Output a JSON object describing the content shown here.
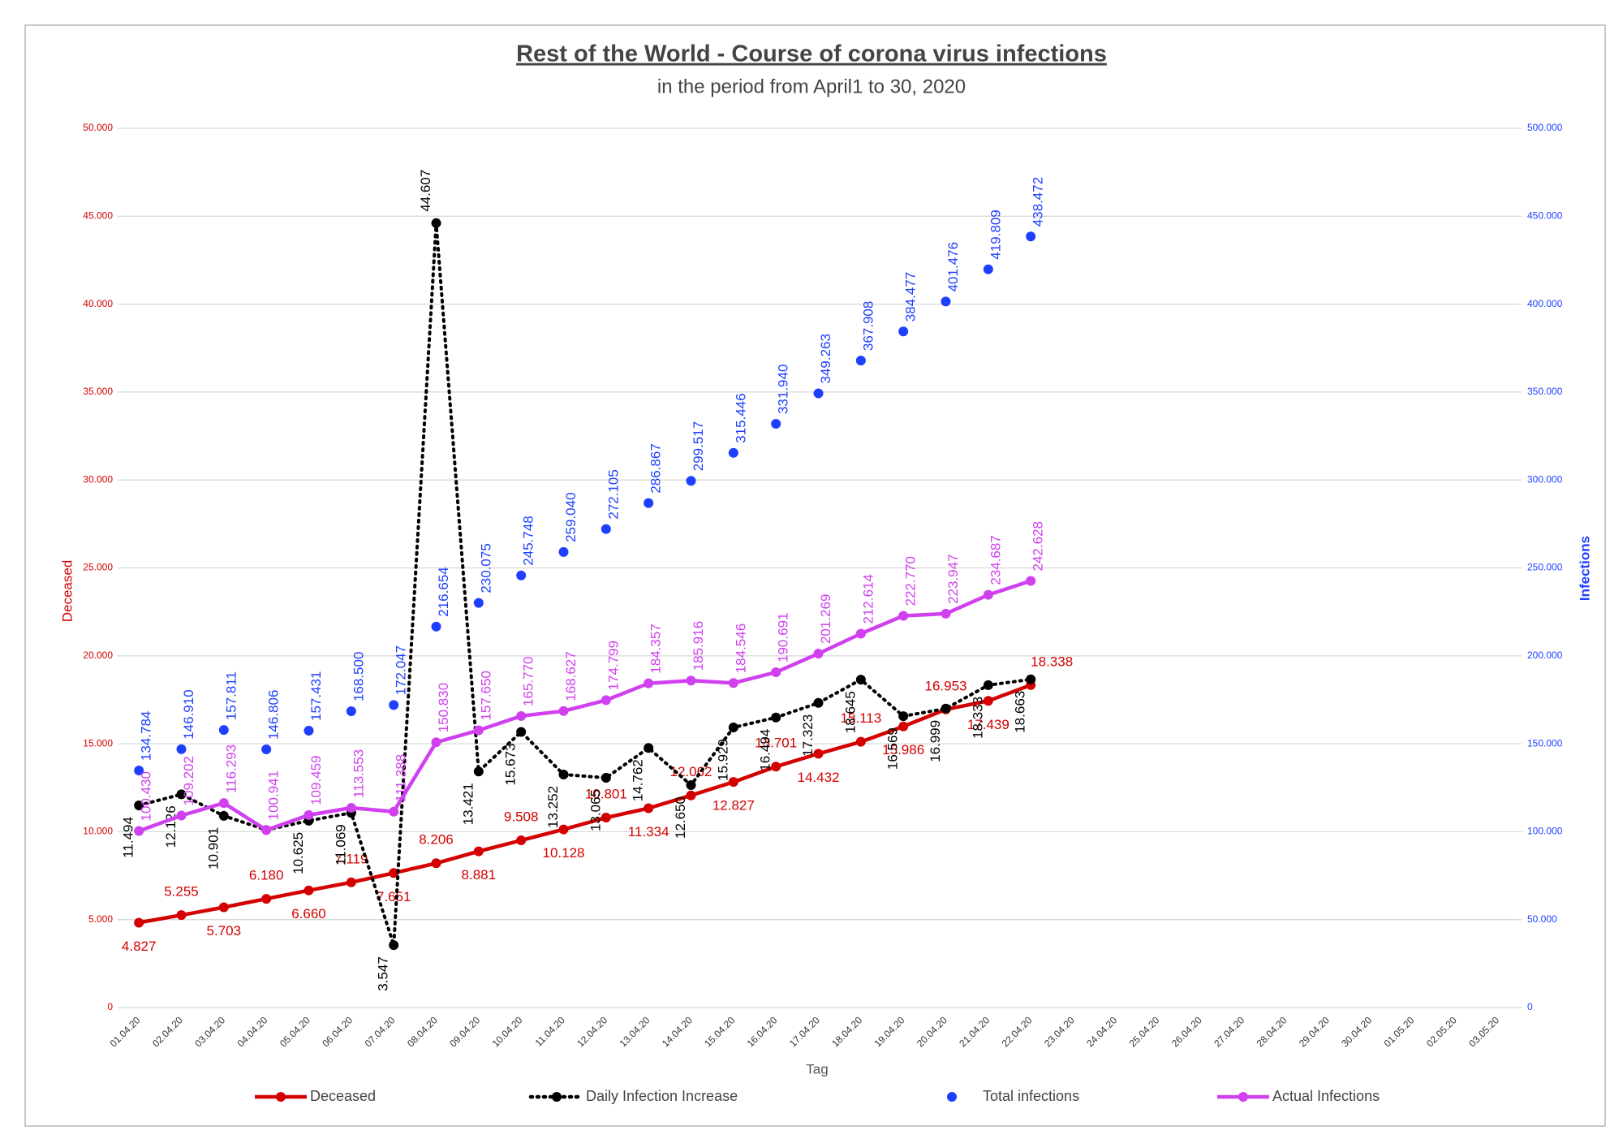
{
  "chart_data": {
    "type": "line",
    "title": "Rest of the World - Course of corona virus infections",
    "subtitle": "in the period from April1 to 30, 2020",
    "x_label": "Tag",
    "y_label": "Deceased",
    "y2_label": "Infections",
    "grid": true,
    "legend": "bottom",
    "categories": [
      "01.04.20",
      "02.04.20",
      "03.04.20",
      "04.04.20",
      "05.04.20",
      "06.04.20",
      "07.04.20",
      "08.04.20",
      "09.04.20",
      "10.04.20",
      "11.04.20",
      "12.04.20",
      "13.04.20",
      "14.04.20",
      "15.04.20",
      "16.04.20",
      "17.04.20",
      "18.04.20",
      "19.04.20",
      "20.04.20",
      "21.04.20",
      "22.04.20",
      "23.04.20",
      "24.04.20",
      "25.04.20",
      "26.04.20",
      "27.04.20",
      "28.04.20",
      "29.04.20",
      "30.04.20",
      "01.05.20",
      "02.05.20",
      "03.05.20"
    ],
    "ylim": [
      0,
      50000
    ],
    "yticks": [
      0,
      {
        "value": 5000,
        "label": "5.000"
      },
      {
        "value": 10000,
        "label": "10.000"
      },
      {
        "value": 15000,
        "label": "15.000"
      },
      {
        "value": 20000,
        "label": "20.000"
      },
      {
        "value": 25000,
        "label": "25.000"
      },
      {
        "value": 30000,
        "label": "30.000"
      },
      {
        "value": 35000,
        "label": "35.000"
      },
      {
        "value": 40000,
        "label": "40.000"
      },
      {
        "value": 45000,
        "label": "45.000"
      },
      {
        "value": 50000,
        "label": "50.000"
      }
    ],
    "y2lim": [
      0,
      500000
    ],
    "y2ticks": [
      0,
      {
        "value": 50000,
        "label": "50.000"
      },
      {
        "value": 100000,
        "label": "100.000"
      },
      {
        "value": 150000,
        "label": "150.000"
      },
      {
        "value": 200000,
        "label": "200.000"
      },
      {
        "value": 250000,
        "label": "250.000"
      },
      {
        "value": 300000,
        "label": "300.000"
      },
      {
        "value": 350000,
        "label": "350.000"
      },
      {
        "value": 400000,
        "label": "400.000"
      },
      {
        "value": 450000,
        "label": "450.000"
      },
      {
        "value": 500000,
        "label": "500.000"
      }
    ],
    "series": [
      {
        "name": "Deceased",
        "color": "#d40000",
        "line_style": "solid",
        "axis": "y",
        "values": [
          4827,
          5255,
          5703,
          6180,
          6660,
          7119,
          7651,
          8206,
          8881,
          9508,
          10128,
          10801,
          11334,
          12062,
          12827,
          13701,
          14432,
          15113,
          15986,
          16953,
          17439,
          18338,
          null,
          null,
          null,
          null,
          null,
          null,
          null,
          null,
          null,
          null,
          null
        ],
        "value_labels": [
          "4.827",
          "5.255",
          "5.703",
          "6.180",
          "6.660",
          "7.119",
          "7.651",
          "8.206",
          "8.881",
          "9.508",
          "10.128",
          "10.801",
          "11.334",
          "12.062",
          "12.827",
          "13.701",
          "14.432",
          "15.113",
          "15.986",
          "16.953",
          "17.439",
          "18.338",
          null,
          null,
          null,
          null,
          null,
          null,
          null,
          null,
          null,
          null,
          null
        ]
      },
      {
        "name": "Daily Infection Increase",
        "color": "#000000",
        "line_style": "dotted",
        "axis": "y",
        "values": [
          11494,
          12126,
          10901,
          10100,
          10625,
          11069,
          3547,
          44607,
          13421,
          15673,
          13252,
          13065,
          14762,
          12650,
          15929,
          16494,
          17323,
          18645,
          16569,
          16999,
          18333,
          18663,
          null,
          null,
          null,
          null,
          null,
          null,
          null,
          null,
          null,
          null,
          null
        ],
        "value_labels": [
          "11.494",
          "12.126",
          "10.901",
          null,
          "10.625",
          "11.069",
          "3.547",
          "44.607",
          "13.421",
          "15.673",
          "13.252",
          "13.065",
          "14.762",
          "12.650",
          "15.929",
          "16.494",
          "17.323",
          "18.645",
          "16.569",
          "16.999",
          "18.333",
          "18.663",
          null,
          null,
          null,
          null,
          null,
          null,
          null,
          null,
          null,
          null,
          null
        ]
      },
      {
        "name": "Total infections",
        "color": "#1f3fff",
        "line_style": "none",
        "axis": "y2",
        "values": [
          134784,
          146910,
          157811,
          146806,
          157431,
          168500,
          172047,
          216654,
          230075,
          245748,
          259040,
          272105,
          286867,
          299517,
          315446,
          331940,
          349263,
          367908,
          384477,
          401476,
          419809,
          438472,
          null,
          null,
          null,
          null,
          null,
          null,
          null,
          null,
          null,
          null,
          null
        ],
        "value_labels": [
          "134.784",
          "146.910",
          "157.811",
          "146.806",
          "157.431",
          "168.500",
          "172.047",
          "216.654",
          "230.075",
          "245.748",
          "259.040",
          "272.105",
          "286.867",
          "299.517",
          "315.446",
          "331.940",
          "349.263",
          "367.908",
          "384.477",
          "401.476",
          "419.809",
          "438.472",
          null,
          null,
          null,
          null,
          null,
          null,
          null,
          null,
          null,
          null,
          null
        ]
      },
      {
        "name": "Actual Infections",
        "color": "#d040ef",
        "line_style": "solid",
        "axis": "y2",
        "values": [
          100430,
          109202,
          116293,
          100941,
          109459,
          113553,
          111388,
          150830,
          157650,
          165770,
          168627,
          174799,
          184357,
          185916,
          184546,
          190691,
          201269,
          212614,
          222770,
          223947,
          234687,
          242628,
          null,
          null,
          null,
          null,
          null,
          null,
          null,
          null,
          null,
          null,
          null
        ],
        "value_labels": [
          "100.430",
          "109.202",
          "116.293",
          "100.941",
          "109.459",
          "113.553",
          "111.388",
          "150.830",
          "157.650",
          "165.770",
          "168.627",
          "174.799",
          "184.357",
          "185.916",
          "184.546",
          "190.691",
          "201.269",
          "212.614",
          "222.770",
          "223.947",
          "234.687",
          "242.628",
          null,
          null,
          null,
          null,
          null,
          null,
          null,
          null,
          null,
          null,
          null
        ]
      }
    ]
  }
}
